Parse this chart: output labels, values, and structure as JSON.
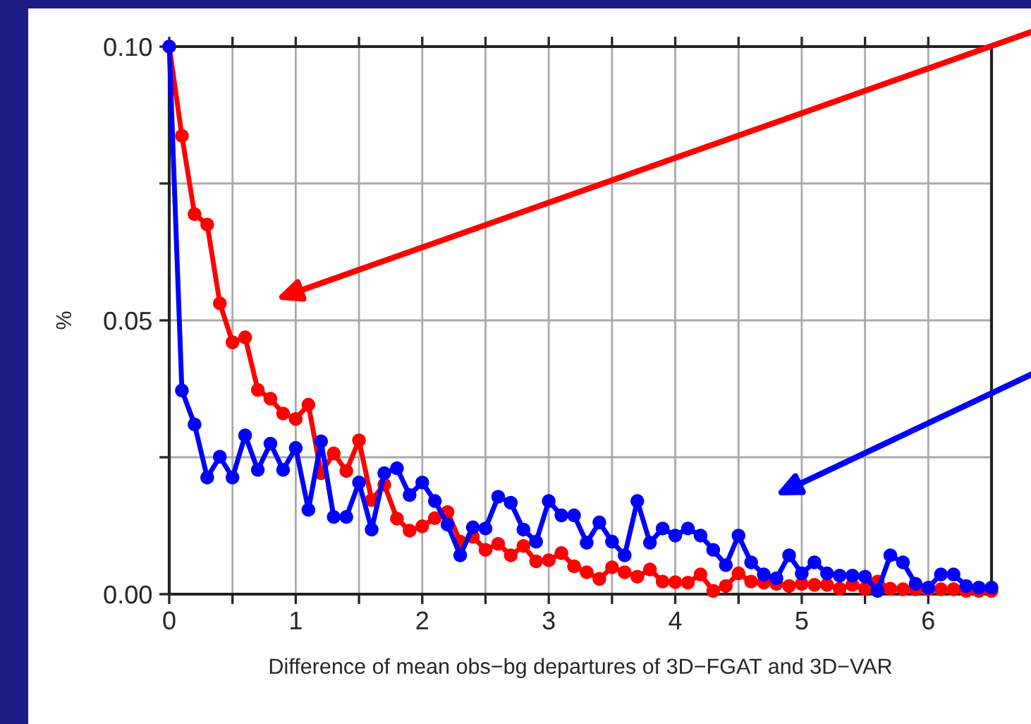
{
  "chart_data": {
    "type": "line",
    "xlabel": "Difference of mean obs−bg departures of 3D−FGAT and 3D−VAR",
    "ylabel": "%",
    "x": [
      0,
      0.1,
      0.2,
      0.3,
      0.4,
      0.5,
      0.6,
      0.7,
      0.8,
      0.9,
      1.0,
      1.1,
      1.2,
      1.3,
      1.4,
      1.5,
      1.6,
      1.7,
      1.8,
      1.9,
      2.0,
      2.1,
      2.2,
      2.3,
      2.4,
      2.5,
      2.6,
      2.7,
      2.8,
      2.9,
      3.0,
      3.1,
      3.2,
      3.3,
      3.4,
      3.5,
      3.6,
      3.7,
      3.8,
      3.9,
      4.0,
      4.1,
      4.2,
      4.3,
      4.4,
      4.5,
      4.6,
      4.7,
      4.8,
      4.9,
      5.0,
      5.1,
      5.2,
      5.3,
      5.4,
      5.5,
      5.6,
      5.7,
      5.8,
      5.9,
      6.0,
      6.1,
      6.2,
      6.3,
      6.4,
      6.5
    ],
    "series": [
      {
        "color": "#ff0000",
        "values": [
          0.1,
          0.0837,
          0.0694,
          0.0675,
          0.0531,
          0.046,
          0.0469,
          0.0373,
          0.0357,
          0.033,
          0.032,
          0.0346,
          0.0221,
          0.0257,
          0.0225,
          0.0281,
          0.0172,
          0.02,
          0.0138,
          0.0116,
          0.0124,
          0.0139,
          0.015,
          0.0096,
          0.0105,
          0.0081,
          0.0092,
          0.0071,
          0.0088,
          0.006,
          0.0062,
          0.0075,
          0.0051,
          0.004,
          0.0028,
          0.0049,
          0.004,
          0.0032,
          0.0045,
          0.0023,
          0.0022,
          0.0021,
          0.0036,
          0.0006,
          0.0015,
          0.0038,
          0.0023,
          0.0021,
          0.0019,
          0.0015,
          0.0019,
          0.0017,
          0.0017,
          0.001,
          0.0017,
          0.001,
          0.0023,
          0.001,
          0.0009,
          0.0009,
          0.0009,
          0.0009,
          0.0009,
          0.0006,
          0.0006,
          0.0006
        ]
      },
      {
        "color": "#0000ff",
        "values": [
          0.1,
          0.0372,
          0.031,
          0.0213,
          0.0251,
          0.0213,
          0.029,
          0.0227,
          0.0275,
          0.0227,
          0.0267,
          0.0154,
          0.0279,
          0.0141,
          0.0141,
          0.0204,
          0.0118,
          0.0221,
          0.023,
          0.0181,
          0.0204,
          0.017,
          0.0127,
          0.0071,
          0.0122,
          0.012,
          0.0178,
          0.0167,
          0.0118,
          0.0096,
          0.017,
          0.0144,
          0.0144,
          0.0094,
          0.0131,
          0.0096,
          0.0071,
          0.017,
          0.0094,
          0.012,
          0.0107,
          0.012,
          0.0107,
          0.0081,
          0.0053,
          0.0107,
          0.0058,
          0.0036,
          0.0029,
          0.0071,
          0.0038,
          0.0058,
          0.0038,
          0.0034,
          0.0034,
          0.0032,
          0.0006,
          0.0071,
          0.0058,
          0.0019,
          0.0012,
          0.0036,
          0.0036,
          0.0015,
          0.0012,
          0.0012
        ]
      }
    ],
    "xlim": [
      0,
      6.5
    ],
    "ylim": [
      0,
      0.1
    ],
    "xticks": [
      0,
      {
        "value": 0.5,
        "label": null
      },
      1,
      {
        "value": 1.5,
        "label": null
      },
      2,
      {
        "value": 2.5,
        "label": null
      },
      3,
      {
        "value": 3.5,
        "label": null
      },
      4,
      {
        "value": 4.5,
        "label": null
      },
      5,
      {
        "value": 5.5,
        "label": null
      },
      6
    ],
    "yticks": [
      {
        "value": 0,
        "label": "0.00"
      },
      {
        "value": 0.025,
        "label": null
      },
      {
        "value": 0.05,
        "label": "0.05"
      },
      {
        "value": 0.075,
        "label": null
      },
      {
        "value": 0.1,
        "label": "0.10"
      }
    ],
    "grid": true,
    "marker": "circle",
    "line_style": "solid",
    "legend": false
  }
}
